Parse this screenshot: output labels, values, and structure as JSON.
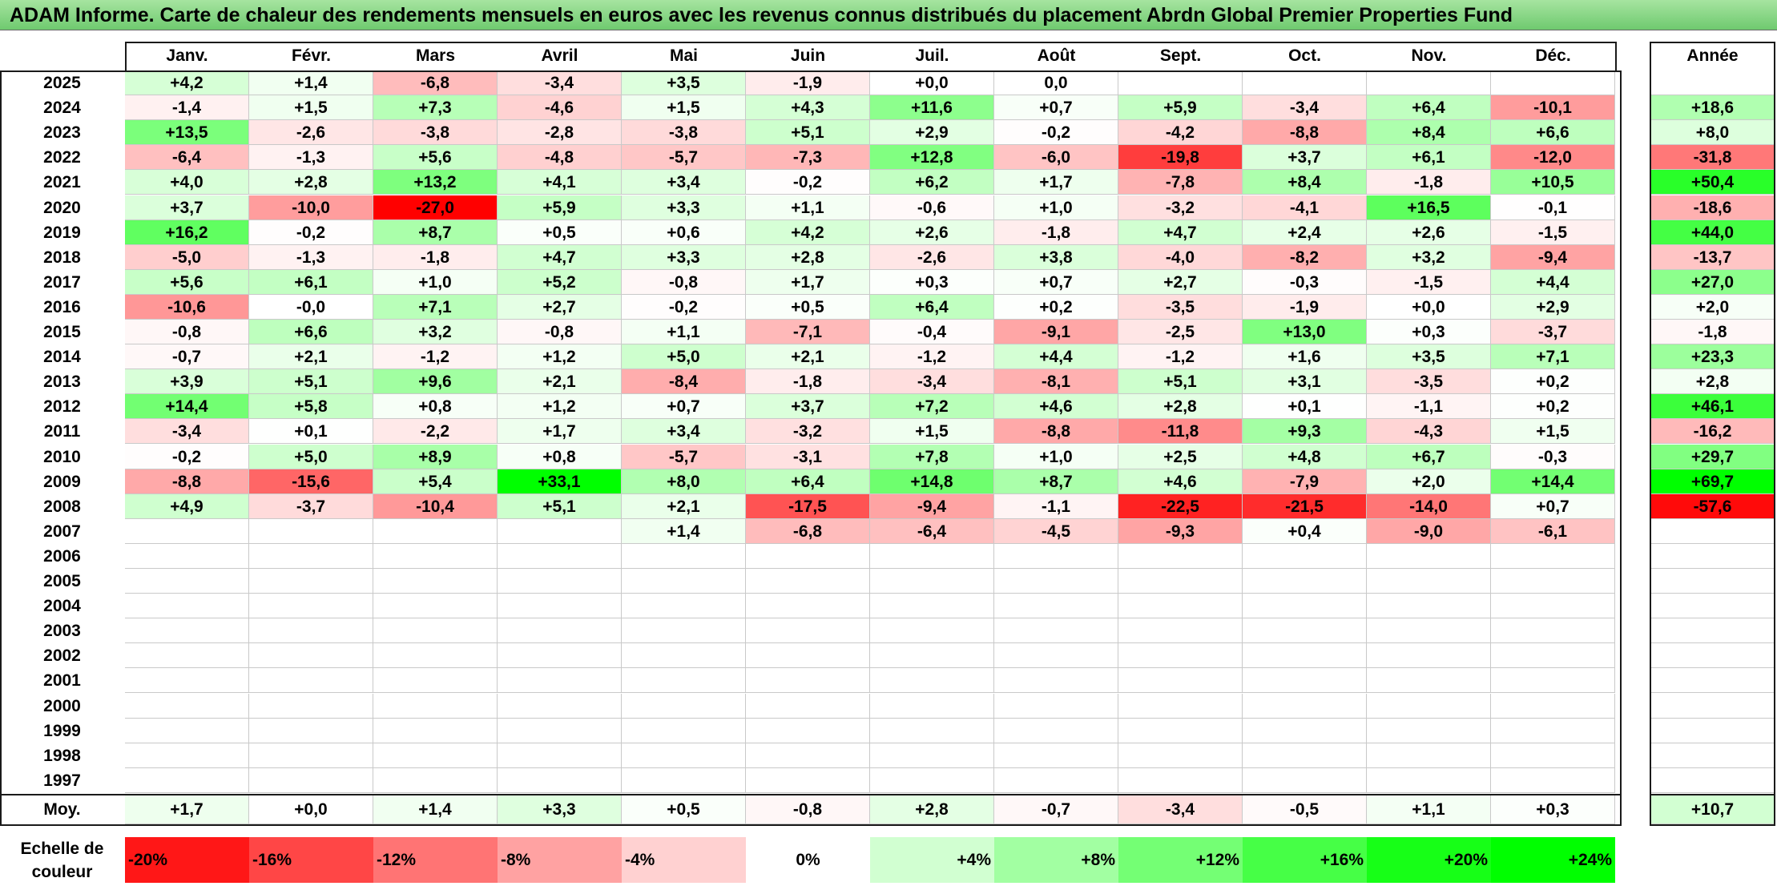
{
  "title": "ADAM Informe. Carte de chaleur des rendements mensuels en euros avec les revenus connus distribués du placement Abrdn Global Premier Properties Fund",
  "colors": {
    "negative_max": "#ff0000",
    "neutral": "#ffffff",
    "positive_max": "#00ff00",
    "title_bar": "#7fd37a"
  },
  "chart_data": {
    "type": "heatmap",
    "title": "ADAM Informe. Carte de chaleur des rendements mensuels en euros avec les revenus connus distribués du placement Abrdn Global Premier Properties Fund",
    "months": [
      "Janv.",
      "Févr.",
      "Mars",
      "Avril",
      "Mai",
      "Juin",
      "Juil.",
      "Août",
      "Sept.",
      "Oct.",
      "Nov.",
      "Déc."
    ],
    "year_header": "Année",
    "rows": [
      {
        "year": "2025",
        "months": [
          "+4,2",
          "+1,4",
          "-6,8",
          "-3,4",
          "+3,5",
          "-1,9",
          "+0,0",
          "0,0",
          "",
          "",
          "",
          ""
        ],
        "annual": ""
      },
      {
        "year": "2024",
        "months": [
          "-1,4",
          "+1,5",
          "+7,3",
          "-4,6",
          "+1,5",
          "+4,3",
          "+11,6",
          "+0,7",
          "+5,9",
          "-3,4",
          "+6,4",
          "-10,1"
        ],
        "annual": "+18,6"
      },
      {
        "year": "2023",
        "months": [
          "+13,5",
          "-2,6",
          "-3,8",
          "-2,8",
          "-3,8",
          "+5,1",
          "+2,9",
          "-0,2",
          "-4,2",
          "-8,8",
          "+8,4",
          "+6,6"
        ],
        "annual": "+8,0"
      },
      {
        "year": "2022",
        "months": [
          "-6,4",
          "-1,3",
          "+5,6",
          "-4,8",
          "-5,7",
          "-7,3",
          "+12,8",
          "-6,0",
          "-19,8",
          "+3,7",
          "+6,1",
          "-12,0"
        ],
        "annual": "-31,8"
      },
      {
        "year": "2021",
        "months": [
          "+4,0",
          "+2,8",
          "+13,2",
          "+4,1",
          "+3,4",
          "-0,2",
          "+6,2",
          "+1,7",
          "-7,8",
          "+8,4",
          "-1,8",
          "+10,5"
        ],
        "annual": "+50,4"
      },
      {
        "year": "2020",
        "months": [
          "+3,7",
          "-10,0",
          "-27,0",
          "+5,9",
          "+3,3",
          "+1,1",
          "-0,6",
          "+1,0",
          "-3,2",
          "-4,1",
          "+16,5",
          "-0,1"
        ],
        "annual": "-18,6"
      },
      {
        "year": "2019",
        "months": [
          "+16,2",
          "-0,2",
          "+8,7",
          "+0,5",
          "+0,6",
          "+4,2",
          "+2,6",
          "-1,8",
          "+4,7",
          "+2,4",
          "+2,6",
          "-1,5"
        ],
        "annual": "+44,0"
      },
      {
        "year": "2018",
        "months": [
          "-5,0",
          "-1,3",
          "-1,8",
          "+4,7",
          "+3,3",
          "+2,8",
          "-2,6",
          "+3,8",
          "-4,0",
          "-8,2",
          "+3,2",
          "-9,4"
        ],
        "annual": "-13,7"
      },
      {
        "year": "2017",
        "months": [
          "+5,6",
          "+6,1",
          "+1,0",
          "+5,2",
          "-0,8",
          "+1,7",
          "+0,3",
          "+0,7",
          "+2,7",
          "-0,3",
          "-1,5",
          "+4,4"
        ],
        "annual": "+27,0"
      },
      {
        "year": "2016",
        "months": [
          "-10,6",
          "-0,0",
          "+7,1",
          "+2,7",
          "-0,2",
          "+0,5",
          "+6,4",
          "+0,2",
          "-3,5",
          "-1,9",
          "+0,0",
          "+2,9"
        ],
        "annual": "+2,0"
      },
      {
        "year": "2015",
        "months": [
          "-0,8",
          "+6,6",
          "+3,2",
          "-0,8",
          "+1,1",
          "-7,1",
          "-0,4",
          "-9,1",
          "-2,5",
          "+13,0",
          "+0,3",
          "-3,7"
        ],
        "annual": "-1,8"
      },
      {
        "year": "2014",
        "months": [
          "-0,7",
          "+2,1",
          "-1,2",
          "+1,2",
          "+5,0",
          "+2,1",
          "-1,2",
          "+4,4",
          "-1,2",
          "+1,6",
          "+3,5",
          "+7,1"
        ],
        "annual": "+23,3"
      },
      {
        "year": "2013",
        "months": [
          "+3,9",
          "+5,1",
          "+9,6",
          "+2,1",
          "-8,4",
          "-1,8",
          "-3,4",
          "-8,1",
          "+5,1",
          "+3,1",
          "-3,5",
          "+0,2"
        ],
        "annual": "+2,8"
      },
      {
        "year": "2012",
        "months": [
          "+14,4",
          "+5,8",
          "+0,8",
          "+1,2",
          "+0,7",
          "+3,7",
          "+7,2",
          "+4,6",
          "+2,8",
          "+0,1",
          "-1,1",
          "+0,2"
        ],
        "annual": "+46,1"
      },
      {
        "year": "2011",
        "months": [
          "-3,4",
          "+0,1",
          "-2,2",
          "+1,7",
          "+3,4",
          "-3,2",
          "+1,5",
          "-8,8",
          "-11,8",
          "+9,3",
          "-4,3",
          "+1,5"
        ],
        "annual": "-16,2"
      },
      {
        "year": "2010",
        "months": [
          "-0,2",
          "+5,0",
          "+8,9",
          "+0,8",
          "-5,7",
          "-3,1",
          "+7,8",
          "+1,0",
          "+2,5",
          "+4,8",
          "+6,7",
          "-0,3"
        ],
        "annual": "+29,7"
      },
      {
        "year": "2009",
        "months": [
          "-8,8",
          "-15,6",
          "+5,4",
          "+33,1",
          "+8,0",
          "+6,4",
          "+14,8",
          "+8,7",
          "+4,6",
          "-7,9",
          "+2,0",
          "+14,4"
        ],
        "annual": "+69,7"
      },
      {
        "year": "2008",
        "months": [
          "+4,9",
          "-3,7",
          "-10,4",
          "+5,1",
          "+2,1",
          "-17,5",
          "-9,4",
          "-1,1",
          "-22,5",
          "-21,5",
          "-14,0",
          "+0,7"
        ],
        "annual": "-57,6"
      },
      {
        "year": "2007",
        "months": [
          "",
          "",
          "",
          "",
          "+1,4",
          "-6,8",
          "-6,4",
          "-4,5",
          "-9,3",
          "+0,4",
          "-9,0",
          "-6,1"
        ],
        "annual": ""
      },
      {
        "year": "2006",
        "months": [
          "",
          "",
          "",
          "",
          "",
          "",
          "",
          "",
          "",
          "",
          "",
          ""
        ],
        "annual": ""
      },
      {
        "year": "2005",
        "months": [
          "",
          "",
          "",
          "",
          "",
          "",
          "",
          "",
          "",
          "",
          "",
          ""
        ],
        "annual": ""
      },
      {
        "year": "2004",
        "months": [
          "",
          "",
          "",
          "",
          "",
          "",
          "",
          "",
          "",
          "",
          "",
          ""
        ],
        "annual": ""
      },
      {
        "year": "2003",
        "months": [
          "",
          "",
          "",
          "",
          "",
          "",
          "",
          "",
          "",
          "",
          "",
          ""
        ],
        "annual": ""
      },
      {
        "year": "2002",
        "months": [
          "",
          "",
          "",
          "",
          "",
          "",
          "",
          "",
          "",
          "",
          "",
          ""
        ],
        "annual": ""
      },
      {
        "year": "2001",
        "months": [
          "",
          "",
          "",
          "",
          "",
          "",
          "",
          "",
          "",
          "",
          "",
          ""
        ],
        "annual": ""
      },
      {
        "year": "2000",
        "months": [
          "",
          "",
          "",
          "",
          "",
          "",
          "",
          "",
          "",
          "",
          "",
          ""
        ],
        "annual": ""
      },
      {
        "year": "1999",
        "months": [
          "",
          "",
          "",
          "",
          "",
          "",
          "",
          "",
          "",
          "",
          "",
          ""
        ],
        "annual": ""
      },
      {
        "year": "1998",
        "months": [
          "",
          "",
          "",
          "",
          "",
          "",
          "",
          "",
          "",
          "",
          "",
          ""
        ],
        "annual": ""
      },
      {
        "year": "1997",
        "months": [
          "",
          "",
          "",
          "",
          "",
          "",
          "",
          "",
          "",
          "",
          "",
          ""
        ],
        "annual": ""
      }
    ],
    "average_label": "Moy.",
    "average": [
      "+1,7",
      "+0,0",
      "+1,4",
      "+3,3",
      "+0,5",
      "-0,8",
      "+2,8",
      "-0,7",
      "-3,4",
      "-0,5",
      "+1,1",
      "+0,3"
    ],
    "average_annual": "+10,7",
    "scale_label": "Echelle de couleur",
    "scale": [
      {
        "label": "-20%",
        "value": -20
      },
      {
        "label": "-16%",
        "value": -16
      },
      {
        "label": "-12%",
        "value": -12
      },
      {
        "label": "-8%",
        "value": -8
      },
      {
        "label": "-4%",
        "value": -4
      },
      {
        "label": "0%",
        "value": 0
      },
      {
        "label": "+4%",
        "value": 4
      },
      {
        "label": "+8%",
        "value": 8
      },
      {
        "label": "+12%",
        "value": 12
      },
      {
        "label": "+16%",
        "value": 16
      },
      {
        "label": "+20%",
        "value": 20
      },
      {
        "label": "+24%",
        "value": 24
      }
    ]
  }
}
